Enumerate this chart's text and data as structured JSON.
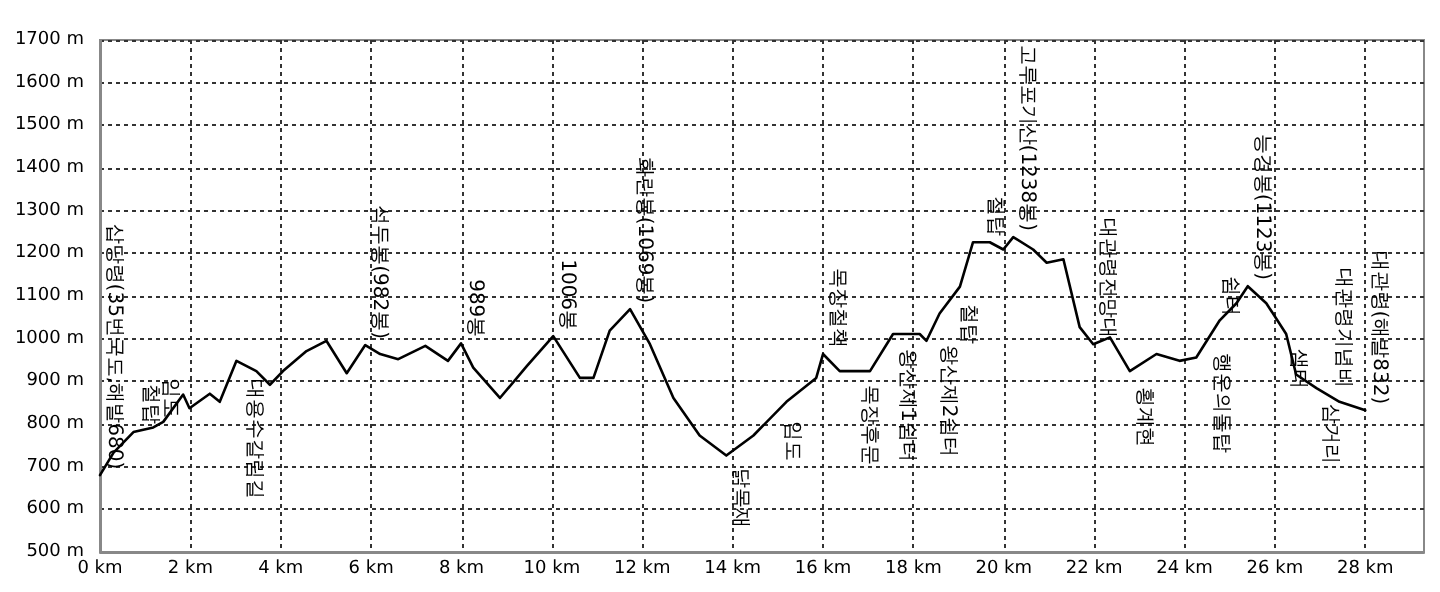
{
  "chart_data": {
    "type": "line",
    "x": [
      0,
      0.3,
      0.74,
      1.18,
      1.4,
      1.84,
      1.98,
      2.43,
      2.65,
      3.02,
      3.46,
      3.76,
      4.05,
      4.57,
      5.01,
      5.46,
      5.87,
      6.2,
      6.6,
      7.2,
      7.7,
      7.99,
      8.26,
      8.85,
      9.44,
      10.03,
      10.62,
      10.92,
      11.28,
      11.73,
      12.17,
      12.69,
      13.27,
      13.86,
      14.46,
      15.19,
      15.85,
      16.0,
      16.37,
      17.04,
      17.55,
      18.14,
      18.29,
      18.58,
      19.03,
      19.32,
      19.69,
      19.99,
      20.21,
      20.65,
      20.95,
      21.32,
      21.68,
      21.98,
      22.35,
      22.79,
      23.38,
      23.89,
      24.26,
      24.78,
      25.15,
      25.4,
      25.81,
      26.25,
      26.47,
      26.92,
      27.43,
      28.0
    ],
    "series": [
      {
        "color": "#000000",
        "values": [
          680,
          733,
          781,
          792,
          805,
          869,
          837,
          871,
          852,
          948,
          924,
          892,
          924,
          971,
          995,
          919,
          985,
          964,
          952,
          983,
          948,
          989,
          932,
          861,
          935,
          1006,
          908,
          908,
          1019,
          1069,
          987,
          861,
          773,
          726,
          773,
          852,
          908,
          964,
          924,
          924,
          1011,
          1011,
          995,
          1059,
          1122,
          1226,
          1226,
          1209,
          1238,
          1209,
          1178,
          1186,
          1027,
          987,
          1003,
          924,
          964,
          948,
          956,
          1043,
          1083,
          1123,
          1083,
          1011,
          916,
          884,
          852,
          832
        ]
      }
    ],
    "xlim": [
      0,
      29.3
    ],
    "ylim": [
      500,
      1700
    ],
    "xticks": [
      {
        "value": 0,
        "label": "0 km"
      },
      {
        "value": 2,
        "label": "2 km"
      },
      {
        "value": 4,
        "label": "4 km"
      },
      {
        "value": 6,
        "label": "6 km"
      },
      {
        "value": 8,
        "label": "8 km"
      },
      {
        "value": 10,
        "label": "10 km"
      },
      {
        "value": 12,
        "label": "12 km"
      },
      {
        "value": 14,
        "label": "14 km"
      },
      {
        "value": 16,
        "label": "16 km"
      },
      {
        "value": 18,
        "label": "18 km"
      },
      {
        "value": 20,
        "label": "20 km"
      },
      {
        "value": 22,
        "label": "22 km"
      },
      {
        "value": 24,
        "label": "24 km"
      },
      {
        "value": 26,
        "label": "26 km"
      },
      {
        "value": 28,
        "label": "28 km"
      }
    ],
    "yticks": [
      {
        "value": 500,
        "label": "500 m"
      },
      {
        "value": 600,
        "label": "600 m"
      },
      {
        "value": 700,
        "label": "700 m"
      },
      {
        "value": 800,
        "label": "800 m"
      },
      {
        "value": 900,
        "label": "900 m"
      },
      {
        "value": 1000,
        "label": "1000 m"
      },
      {
        "value": 1100,
        "label": "1100 m"
      },
      {
        "value": 1200,
        "label": "1200 m"
      },
      {
        "value": 1300,
        "label": "1300 m"
      },
      {
        "value": 1400,
        "label": "1400 m"
      },
      {
        "value": 1500,
        "label": "1500 m"
      },
      {
        "value": 1600,
        "label": "1600 m"
      },
      {
        "value": 1700,
        "label": "1700 m"
      }
    ],
    "grid": true,
    "marker": "none",
    "line_style": "solid",
    "annotations": [
      {
        "text": "삽당령(35번국도,해발680)",
        "x": 0,
        "y": 680
      },
      {
        "text": "철탑",
        "x": 0.8,
        "y": 785
      },
      {
        "text": "임도",
        "x": 1.25,
        "y": 800
      },
      {
        "text": "대용수갈림길",
        "x": 3.1,
        "y": 920
      },
      {
        "text": "석두봉(982봉)",
        "x": 5.87,
        "y": 985
      },
      {
        "text": "989봉",
        "x": 7.99,
        "y": 989
      },
      {
        "text": "1006봉",
        "x": 10.03,
        "y": 1006
      },
      {
        "text": "화란봉(1069봉)",
        "x": 11.73,
        "y": 1069
      },
      {
        "text": "닭목재",
        "x": 13.86,
        "y": 710
      },
      {
        "text": "임도",
        "x": 15.0,
        "y": 820
      },
      {
        "text": "목장철책",
        "x": 16.0,
        "y": 964
      },
      {
        "text": "목장후문",
        "x": 16.7,
        "y": 905
      },
      {
        "text": "왕산제1쉼터",
        "x": 17.55,
        "y": 990
      },
      {
        "text": "왕산제2쉼터",
        "x": 18.45,
        "y": 1000
      },
      {
        "text": "철탑",
        "x": 18.9,
        "y": 1095
      },
      {
        "text": "철탑",
        "x": 19.5,
        "y": 1226
      },
      {
        "text": "고루포기산(1238봉)",
        "x": 20.21,
        "y": 1238
      },
      {
        "text": "대관령전망대",
        "x": 21.98,
        "y": 987
      },
      {
        "text": "횡계현",
        "x": 22.79,
        "y": 900
      },
      {
        "text": "쉼터",
        "x": 24.7,
        "y": 1040
      },
      {
        "text": "행운의돌탑",
        "x": 24.5,
        "y": 980
      },
      {
        "text": "능경봉(1123봉)",
        "x": 25.4,
        "y": 1123
      },
      {
        "text": "샘터",
        "x": 26.2,
        "y": 990
      },
      {
        "text": "삼거리",
        "x": 26.92,
        "y": 860
      },
      {
        "text": "대관령기념비",
        "x": 27.2,
        "y": 870
      },
      {
        "text": "대관령(해발832)",
        "x": 28.0,
        "y": 832
      }
    ]
  }
}
